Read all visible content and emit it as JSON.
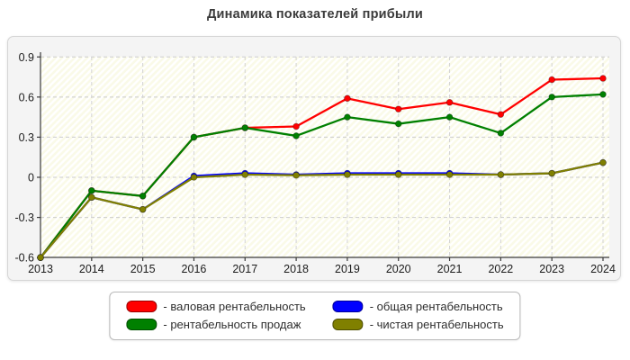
{
  "page": {
    "title": "Динамика показателей прибыли"
  },
  "chart_data": {
    "type": "line",
    "title": "Динамика показателей прибыли",
    "x": [
      "2013",
      "2014",
      "2015",
      "2016",
      "2017",
      "2018",
      "2019",
      "2020",
      "2021",
      "2022",
      "2023",
      "2024"
    ],
    "ylim": [
      -0.6,
      0.9
    ],
    "ytick_values": [
      0.9,
      0.6,
      0.3,
      0,
      -0.3,
      -0.6
    ],
    "ytick_labels": [
      "0.9",
      "0.6",
      "0.3",
      "0",
      "-0.3",
      "-0.6"
    ],
    "grid": true,
    "legend_position": "bottom",
    "series": [
      {
        "name": "валовая рентабельность",
        "color": "#ff0000",
        "values": [
          -0.6,
          -0.1,
          -0.14,
          0.3,
          0.37,
          0.38,
          0.59,
          0.51,
          0.56,
          0.47,
          0.73,
          0.74
        ]
      },
      {
        "name": "рентабельность продаж",
        "color": "#008000",
        "values": [
          -0.6,
          -0.1,
          -0.14,
          0.3,
          0.37,
          0.31,
          0.45,
          0.4,
          0.45,
          0.33,
          0.6,
          0.62
        ]
      },
      {
        "name": "общая рентабельность",
        "color": "#0000ff",
        "values": [
          -0.6,
          -0.15,
          -0.24,
          0.01,
          0.03,
          0.02,
          0.03,
          0.03,
          0.03,
          0.02,
          0.03,
          0.11
        ]
      },
      {
        "name": "чистая рентабельность",
        "color": "#808000",
        "values": [
          -0.6,
          -0.15,
          -0.24,
          0.0,
          0.02,
          0.015,
          0.02,
          0.02,
          0.02,
          0.02,
          0.03,
          0.11
        ]
      }
    ]
  },
  "legend": {
    "items": [
      {
        "label": "- валовая рентабельность",
        "color": "#ff0000"
      },
      {
        "label": "- общая рентабельность",
        "color": "#0000ff"
      },
      {
        "label": "- рентабельность продаж",
        "color": "#008000"
      },
      {
        "label": "- чистая рентабельность",
        "color": "#808000"
      }
    ]
  }
}
